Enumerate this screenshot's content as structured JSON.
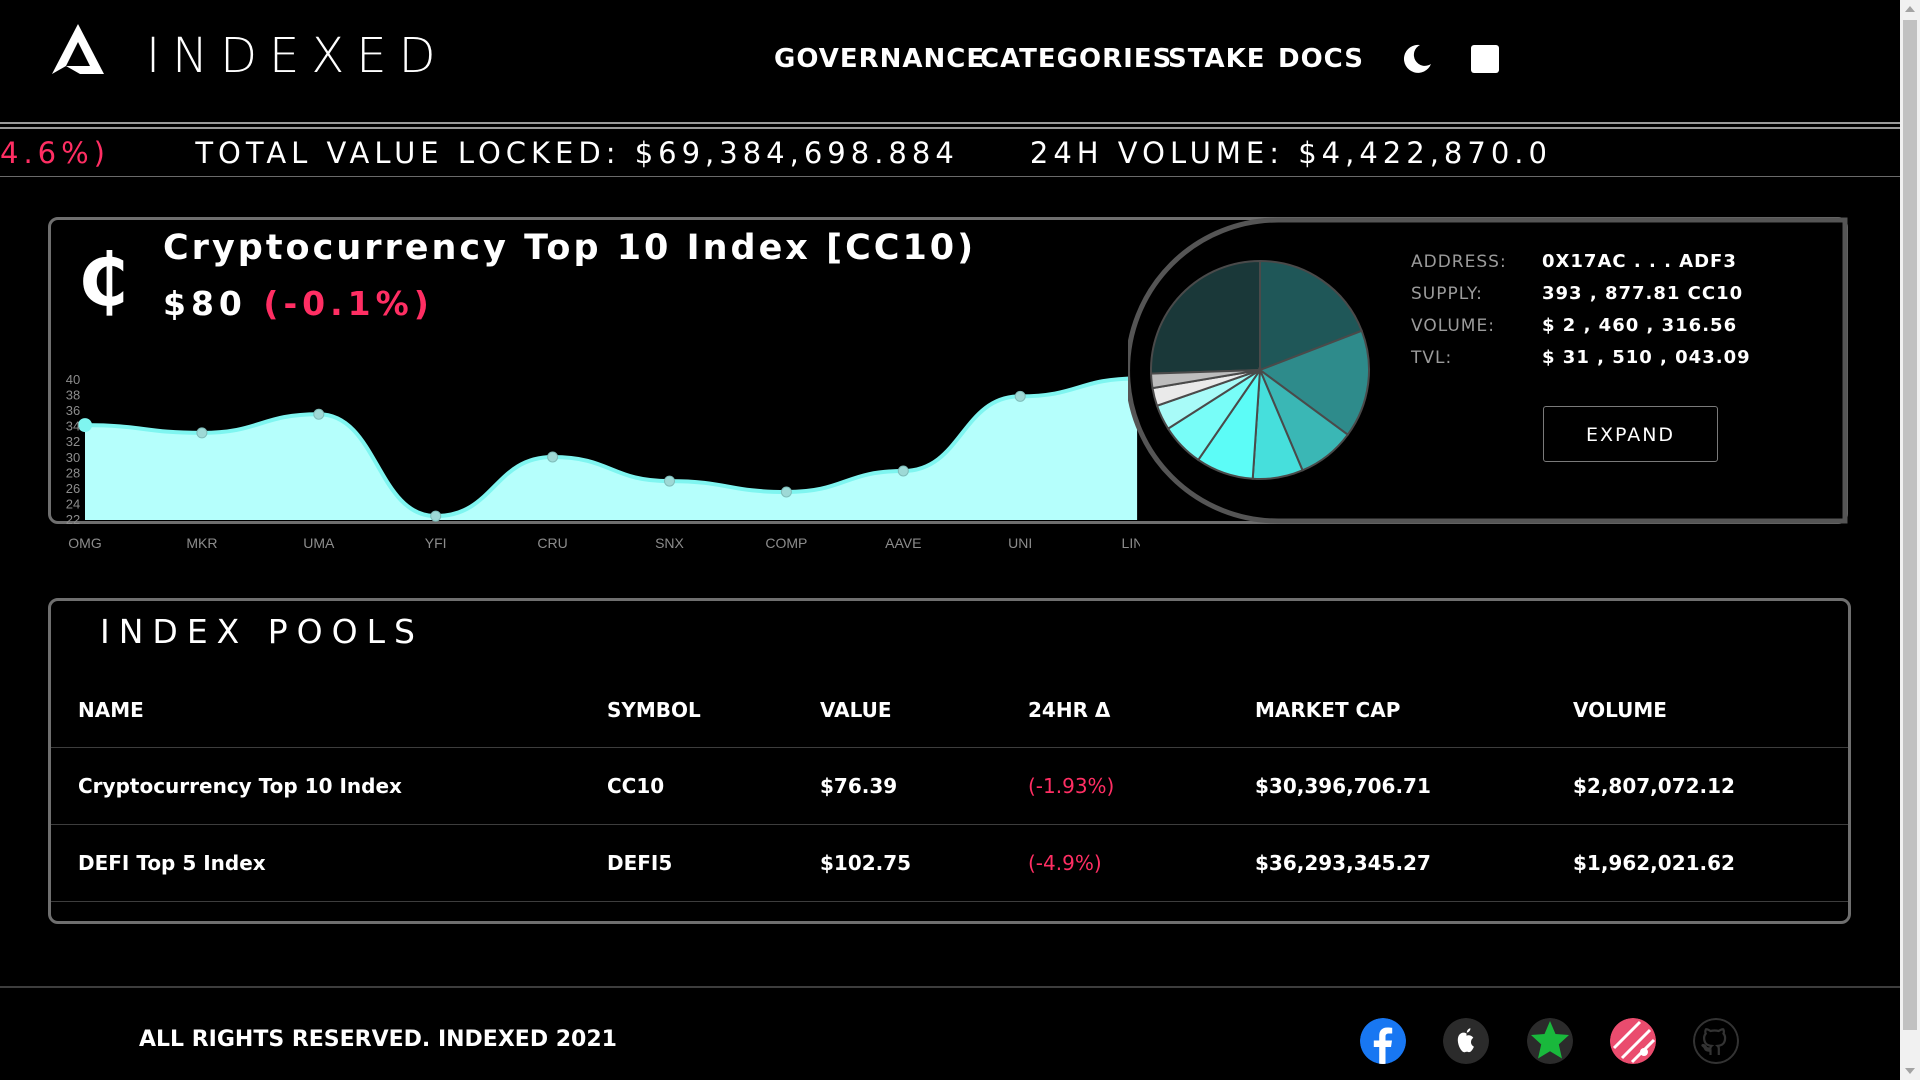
{
  "header": {
    "brand": "INDEXED",
    "nav": [
      "GOVERNANCE",
      "CATEGORIES",
      "STAKE",
      "DOCS"
    ],
    "icons": [
      "theme-toggle-moon-icon",
      "square-icon"
    ]
  },
  "ticker": {
    "change": "4.6%)",
    "tvl_label": "TOTAL VALUE LOCKED:",
    "tvl_value": "$69,384,698.884",
    "volume_label": "24H VOLUME:",
    "volume_value": "$4,422,870.0"
  },
  "index_card": {
    "symbol_glyph": "₵",
    "title": "Cryptocurrency Top 10 Index [CC10)",
    "price": "$80",
    "change": "(-0.1%)",
    "details": [
      {
        "label": "ADDRESS:",
        "value": "0X17AC . . . ADF3"
      },
      {
        "label": "SUPPLY:",
        "value": "393 , 877.81 CC10"
      },
      {
        "label": "VOLUME:",
        "value": "$ 2 , 460 , 316.56"
      },
      {
        "label": "TVL:",
        "value": "$ 31 , 510 , 043.09"
      }
    ],
    "expand_label": "EXPAND",
    "colors": {
      "area": "#b5fffc",
      "line": "#7ff5f0",
      "negative": "#ff2e63"
    }
  },
  "chart_data": [
    {
      "type": "area",
      "categories": [
        "OMG",
        "MKR",
        "UMA",
        "YFI",
        "CRU",
        "SNX",
        "COMP",
        "AAVE",
        "UNI",
        "LINK"
      ],
      "values": [
        34.2,
        33.2,
        35.6,
        22.5,
        30.1,
        27.0,
        25.6,
        28.3,
        37.9,
        40.2
      ],
      "ylim": [
        22,
        40
      ],
      "yticks": [
        22,
        24,
        26,
        28,
        30,
        32,
        34,
        36,
        38,
        40
      ],
      "grid": false
    },
    {
      "type": "pie",
      "values": [
        24,
        18,
        15,
        8,
        7,
        8,
        6,
        3.5,
        2.5,
        2
      ],
      "colors": [
        "#1a3839",
        "#1f5758",
        "#2e8b8b",
        "#3ab7b5",
        "#46dfdc",
        "#5cfcf7",
        "#78fdf8",
        "#a8fbf8",
        "#eaeaea",
        "#bdbdbd"
      ]
    }
  ],
  "pools": {
    "title": "INDEX POOLS",
    "columns": [
      "NAME",
      "SYMBOL",
      "VALUE",
      "24HR Δ",
      "MARKET CAP",
      "VOLUME"
    ],
    "rows": [
      [
        "Cryptocurrency Top 10 Index",
        "CC10",
        "$76.39",
        "(-1.93%)",
        "$30,396,706.71",
        "$2,807,072.12"
      ],
      [
        "DEFI Top 5 Index",
        "DEFI5",
        "$102.75",
        "(-4.9%)",
        "$36,293,345.27",
        "$1,962,021.62"
      ]
    ]
  },
  "footer": {
    "text": "ALL RIGHTS RESERVED. INDEXED 2021",
    "socials": [
      "facebook-icon",
      "apple-icon",
      "star-icon",
      "dribbble-icon",
      "github-icon"
    ]
  }
}
